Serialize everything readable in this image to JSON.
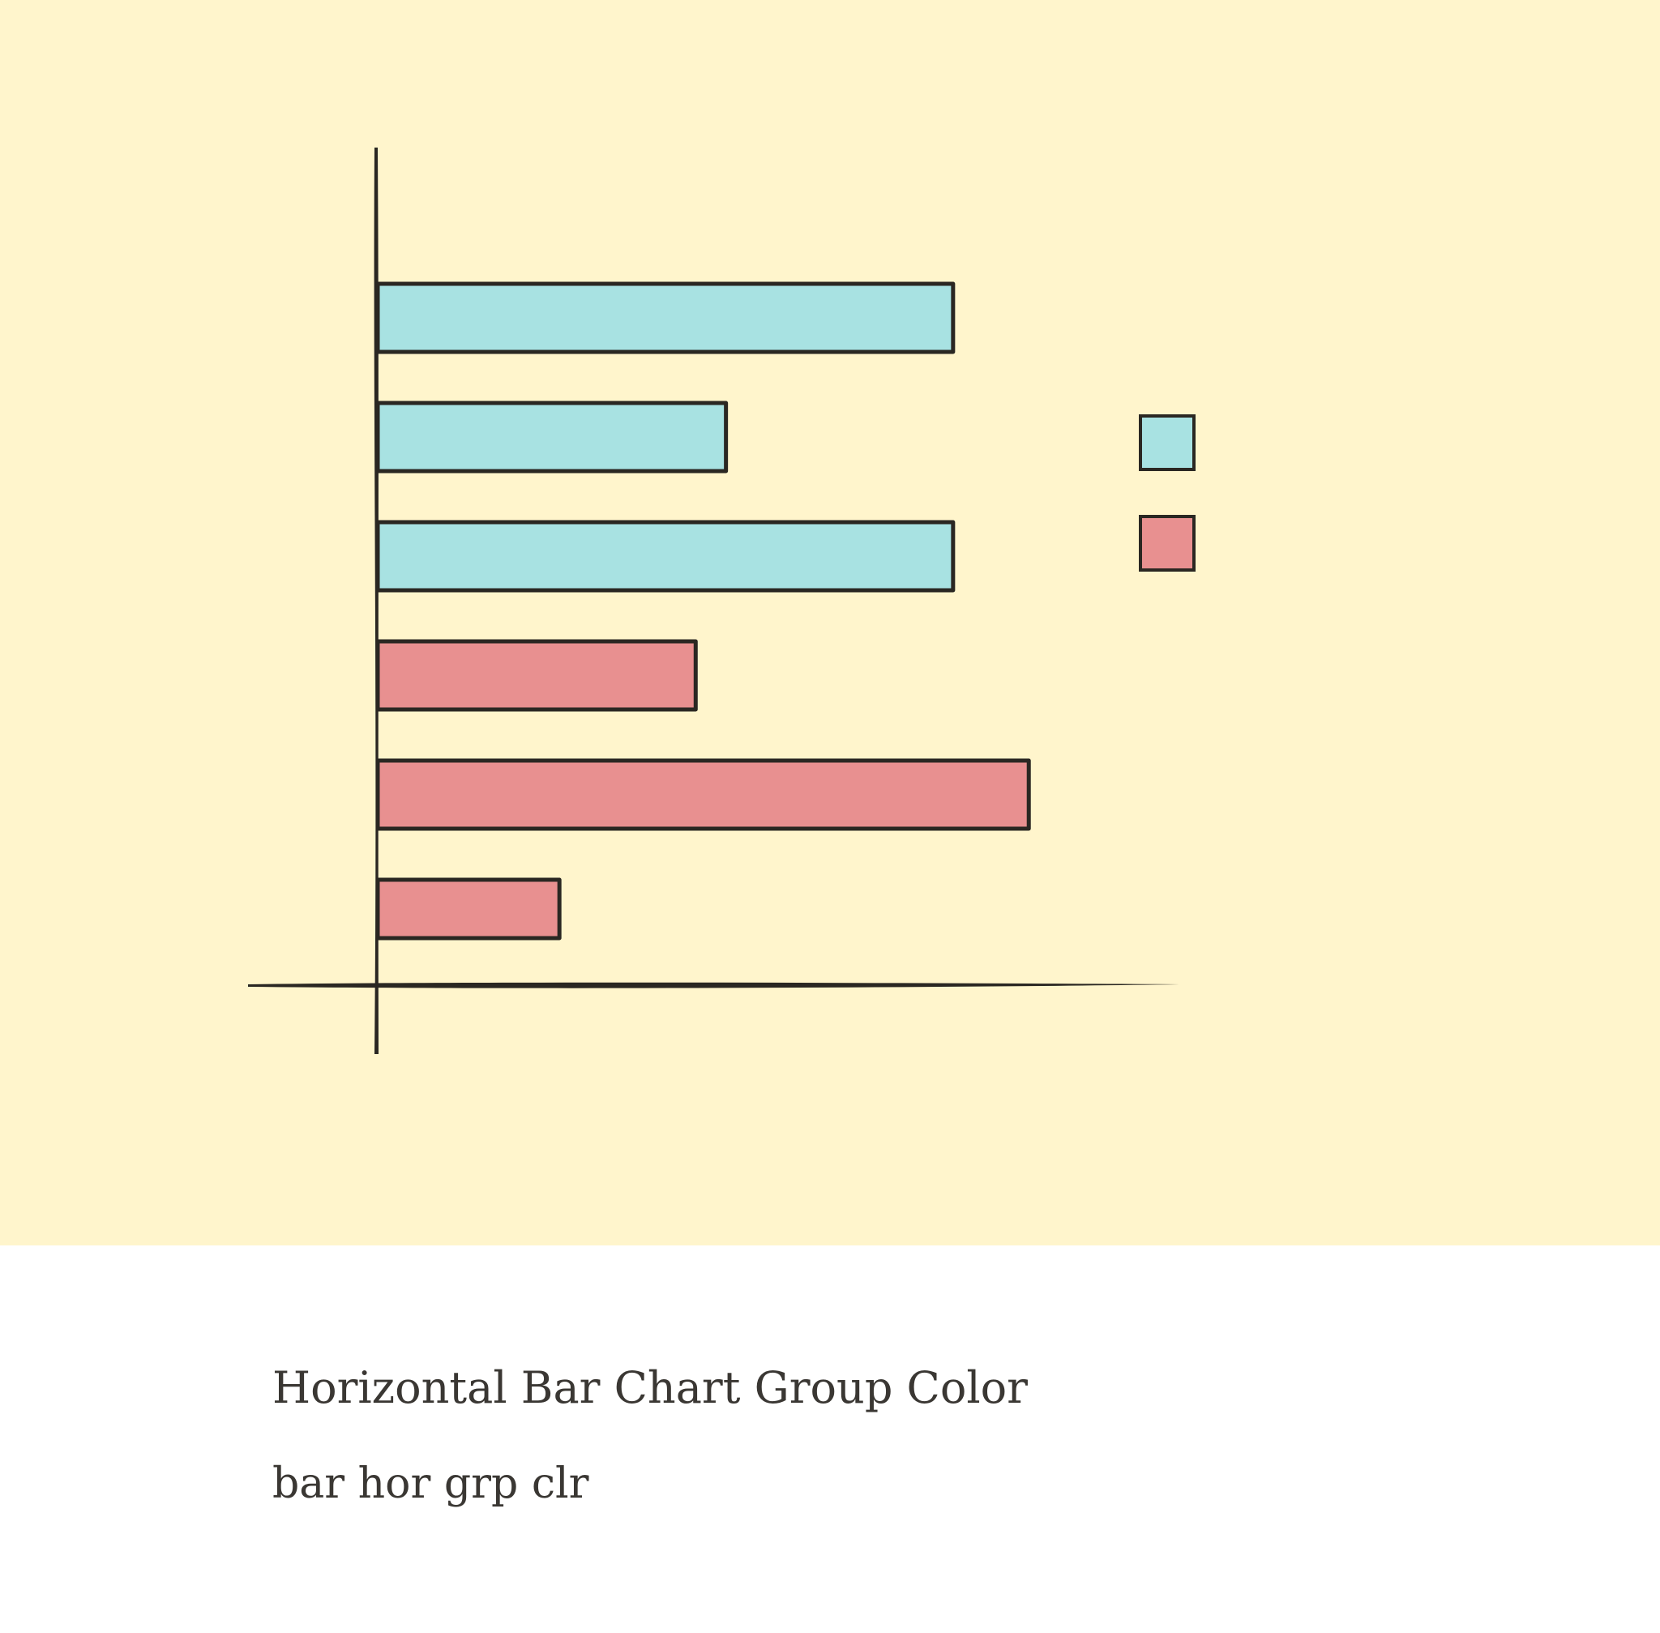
{
  "card": {
    "title": "Horizontal Bar Chart Group Color",
    "subtitle": "bar hor grp clr"
  },
  "colors": {
    "background": "#FFF5CC",
    "group_a": "#A8E2E2",
    "group_b": "#E89090",
    "ink": "#2A2722",
    "caption_text": "#3A3733"
  },
  "chart_data": {
    "type": "bar",
    "orientation": "horizontal",
    "title": "",
    "xlabel": "",
    "ylabel": "",
    "xlim": [
      0,
      100
    ],
    "grid": false,
    "legend_position": "right",
    "series": [
      {
        "group": "a",
        "values": [
          76,
          46,
          76
        ]
      },
      {
        "group": "b",
        "values": [
          42,
          86,
          24
        ]
      }
    ]
  }
}
